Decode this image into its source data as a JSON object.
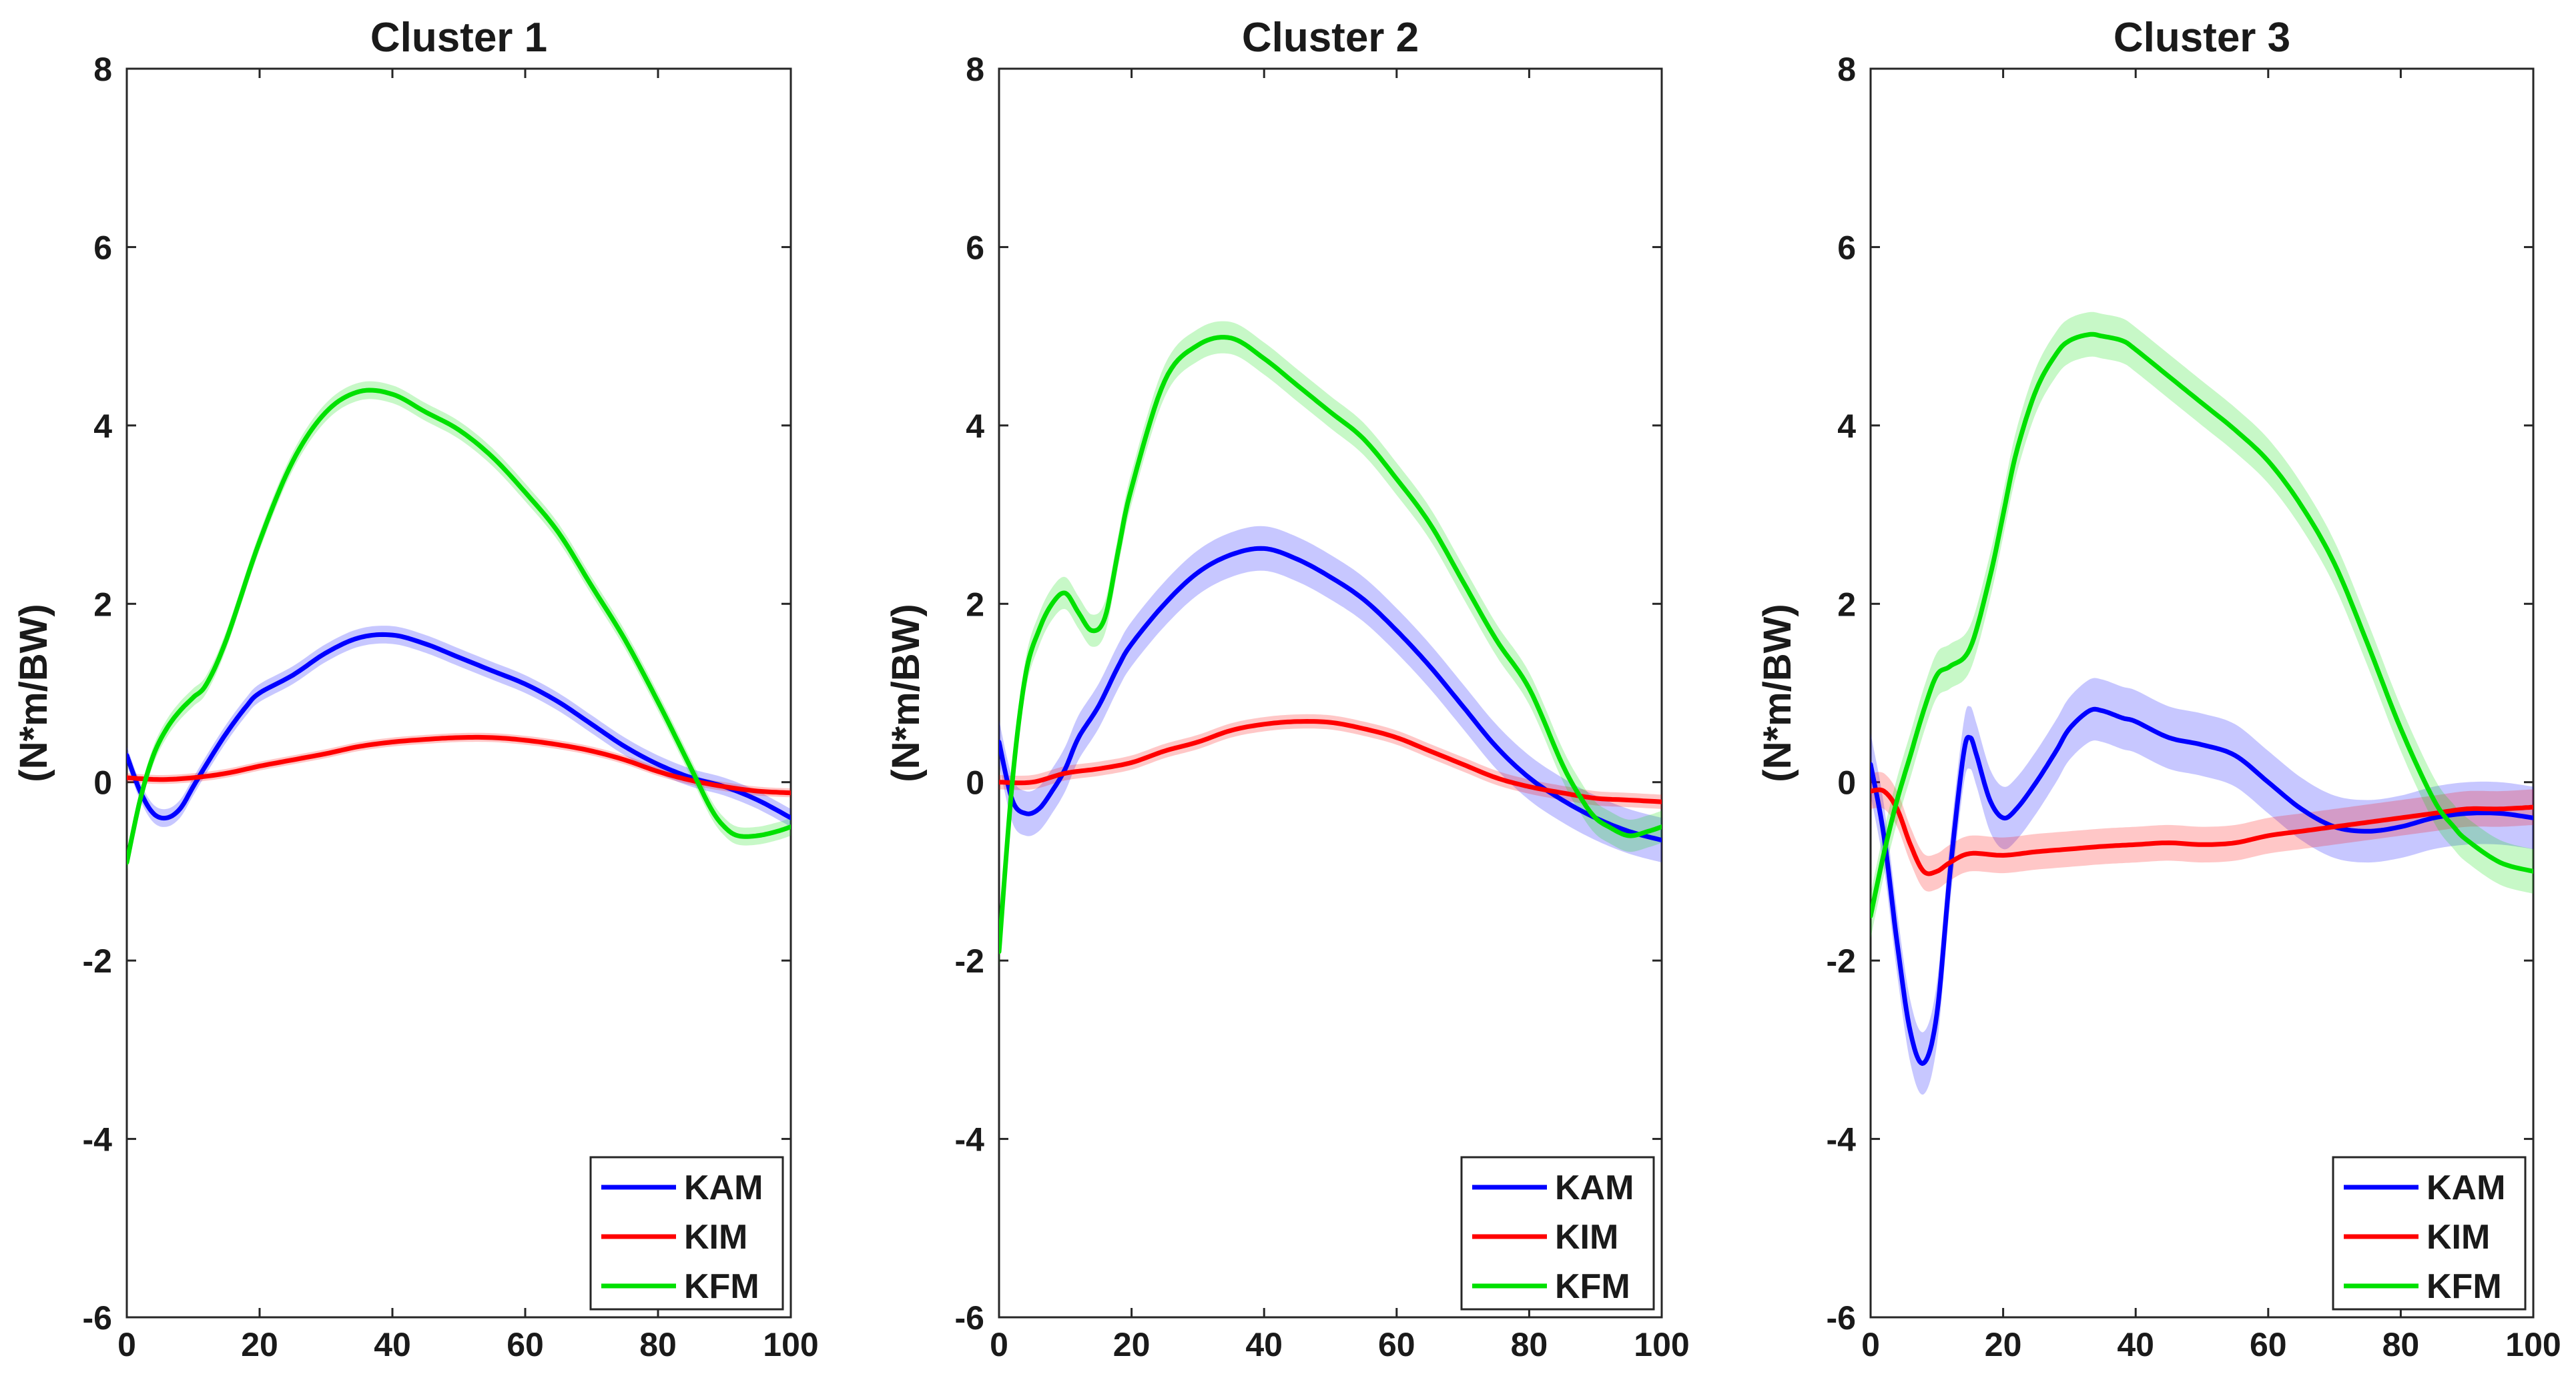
{
  "chart_data": [
    {
      "type": "line",
      "title": "Cluster 1",
      "xlabel": "",
      "ylabel": "(N*m/BW)",
      "xlim": [
        0,
        100
      ],
      "ylim": [
        -6,
        8
      ],
      "xticks": [
        0,
        20,
        40,
        60,
        80,
        100
      ],
      "yticks": [
        -6,
        -4,
        -2,
        0,
        2,
        4,
        6,
        8
      ],
      "legend_position": "bottom-right",
      "series": [
        {
          "name": "KAM",
          "color": "#0000ff",
          "band": 0.1,
          "x": [
            0,
            2,
            4,
            6,
            8,
            10,
            12,
            15,
            18,
            20,
            25,
            30,
            35,
            40,
            45,
            50,
            55,
            60,
            65,
            70,
            75,
            80,
            85,
            90,
            95,
            100
          ],
          "y": [
            0.3,
            -0.1,
            -0.35,
            -0.4,
            -0.3,
            -0.05,
            0.2,
            0.55,
            0.85,
            1.0,
            1.2,
            1.45,
            1.62,
            1.65,
            1.55,
            1.4,
            1.25,
            1.1,
            0.9,
            0.65,
            0.4,
            0.2,
            0.05,
            -0.05,
            -0.2,
            -0.4
          ]
        },
        {
          "name": "KIM",
          "color": "#ff0000",
          "band": 0.05,
          "x": [
            0,
            5,
            10,
            15,
            20,
            25,
            30,
            35,
            40,
            45,
            50,
            55,
            60,
            65,
            70,
            75,
            80,
            85,
            90,
            95,
            100
          ],
          "y": [
            0.05,
            0.03,
            0.05,
            0.1,
            0.18,
            0.25,
            0.32,
            0.4,
            0.45,
            0.48,
            0.5,
            0.5,
            0.47,
            0.42,
            0.35,
            0.25,
            0.12,
            0.02,
            -0.05,
            -0.1,
            -0.12
          ]
        },
        {
          "name": "KFM",
          "color": "#00e000",
          "band": 0.1,
          "x": [
            0,
            2,
            4,
            6,
            8,
            10,
            12,
            15,
            20,
            25,
            30,
            35,
            40,
            45,
            50,
            55,
            60,
            65,
            70,
            75,
            80,
            85,
            88,
            90,
            92,
            95,
            98,
            100
          ],
          "y": [
            -0.9,
            -0.2,
            0.3,
            0.6,
            0.8,
            0.95,
            1.1,
            1.6,
            2.7,
            3.6,
            4.15,
            4.38,
            4.35,
            4.15,
            3.95,
            3.65,
            3.25,
            2.8,
            2.2,
            1.6,
            0.9,
            0.15,
            -0.3,
            -0.5,
            -0.6,
            -0.6,
            -0.55,
            -0.5
          ]
        }
      ]
    },
    {
      "type": "line",
      "title": "Cluster 2",
      "xlabel": "",
      "ylabel": "(N*m/BW)",
      "xlim": [
        0,
        100
      ],
      "ylim": [
        -6,
        8
      ],
      "xticks": [
        0,
        20,
        40,
        60,
        80,
        100
      ],
      "yticks": [
        -6,
        -4,
        -2,
        0,
        2,
        4,
        6,
        8
      ],
      "legend_position": "bottom-right",
      "series": [
        {
          "name": "KAM",
          "color": "#0000ff",
          "band": 0.25,
          "x": [
            0,
            2,
            4,
            6,
            8,
            10,
            12,
            15,
            18,
            20,
            25,
            30,
            35,
            40,
            45,
            50,
            55,
            60,
            65,
            70,
            75,
            80,
            85,
            90,
            95,
            100
          ],
          "y": [
            0.45,
            -0.2,
            -0.35,
            -0.3,
            -0.1,
            0.15,
            0.5,
            0.85,
            1.3,
            1.55,
            2.0,
            2.35,
            2.55,
            2.62,
            2.5,
            2.3,
            2.05,
            1.7,
            1.3,
            0.85,
            0.4,
            0.05,
            -0.2,
            -0.4,
            -0.55,
            -0.65
          ]
        },
        {
          "name": "KIM",
          "color": "#ff0000",
          "band": 0.08,
          "x": [
            0,
            5,
            10,
            15,
            20,
            25,
            30,
            35,
            40,
            45,
            50,
            55,
            60,
            65,
            70,
            75,
            80,
            85,
            90,
            95,
            100
          ],
          "y": [
            0.0,
            0.0,
            0.1,
            0.15,
            0.22,
            0.35,
            0.45,
            0.58,
            0.65,
            0.68,
            0.67,
            0.6,
            0.5,
            0.35,
            0.2,
            0.05,
            -0.05,
            -0.12,
            -0.18,
            -0.2,
            -0.22
          ]
        },
        {
          "name": "KFM",
          "color": "#00e000",
          "band": 0.18,
          "x": [
            0,
            2,
            4,
            6,
            8,
            10,
            12,
            14,
            16,
            18,
            20,
            25,
            30,
            35,
            40,
            45,
            50,
            55,
            60,
            65,
            70,
            75,
            80,
            85,
            88,
            90,
            92,
            95,
            98,
            100
          ],
          "y": [
            -1.9,
            0.0,
            1.2,
            1.7,
            2.0,
            2.12,
            1.9,
            1.7,
            1.85,
            2.6,
            3.3,
            4.5,
            4.9,
            4.98,
            4.75,
            4.45,
            4.15,
            3.85,
            3.4,
            2.9,
            2.25,
            1.6,
            1.05,
            0.2,
            -0.2,
            -0.4,
            -0.5,
            -0.6,
            -0.55,
            -0.5
          ]
        }
      ]
    },
    {
      "type": "line",
      "title": "Cluster 3",
      "xlabel": "",
      "ylabel": "(N*m/BW)",
      "xlim": [
        0,
        100
      ],
      "ylim": [
        -6,
        8
      ],
      "xticks": [
        0,
        20,
        40,
        60,
        80,
        100
      ],
      "yticks": [
        -6,
        -4,
        -2,
        0,
        2,
        4,
        6,
        8
      ],
      "legend_position": "bottom-right",
      "series": [
        {
          "name": "KAM",
          "color": "#0000ff",
          "band": 0.35,
          "x": [
            0,
            2,
            4,
            6,
            8,
            10,
            12,
            14,
            15,
            16,
            18,
            20,
            22,
            25,
            28,
            30,
            33,
            35,
            38,
            40,
            45,
            50,
            55,
            60,
            65,
            70,
            75,
            80,
            85,
            90,
            95,
            100
          ],
          "y": [
            0.2,
            -0.6,
            -1.8,
            -2.8,
            -3.15,
            -2.6,
            -1.0,
            0.3,
            0.5,
            0.3,
            -0.2,
            -0.4,
            -0.3,
            0.0,
            0.35,
            0.6,
            0.8,
            0.8,
            0.72,
            0.68,
            0.5,
            0.42,
            0.3,
            0.0,
            -0.3,
            -0.5,
            -0.55,
            -0.5,
            -0.4,
            -0.35,
            -0.35,
            -0.4
          ]
        },
        {
          "name": "KIM",
          "color": "#ff0000",
          "band": 0.2,
          "x": [
            0,
            2,
            4,
            6,
            8,
            10,
            12,
            15,
            20,
            25,
            30,
            35,
            40,
            45,
            50,
            55,
            60,
            65,
            70,
            75,
            80,
            85,
            90,
            95,
            100
          ],
          "y": [
            -0.1,
            -0.1,
            -0.3,
            -0.7,
            -1.0,
            -1.0,
            -0.9,
            -0.8,
            -0.82,
            -0.78,
            -0.75,
            -0.72,
            -0.7,
            -0.68,
            -0.7,
            -0.68,
            -0.6,
            -0.55,
            -0.5,
            -0.45,
            -0.4,
            -0.35,
            -0.3,
            -0.3,
            -0.28
          ]
        },
        {
          "name": "KFM",
          "color": "#00e000",
          "band": 0.25,
          "x": [
            0,
            2,
            4,
            6,
            8,
            10,
            12,
            15,
            18,
            20,
            22,
            25,
            28,
            30,
            33,
            35,
            38,
            40,
            45,
            50,
            55,
            60,
            65,
            70,
            75,
            80,
            85,
            88,
            90,
            95,
            100
          ],
          "y": [
            -1.5,
            -0.8,
            -0.2,
            0.3,
            0.8,
            1.2,
            1.3,
            1.5,
            2.3,
            3.0,
            3.7,
            4.4,
            4.8,
            4.95,
            5.02,
            5.0,
            4.95,
            4.85,
            4.55,
            4.25,
            3.95,
            3.6,
            3.1,
            2.45,
            1.55,
            0.6,
            -0.2,
            -0.5,
            -0.65,
            -0.9,
            -1.0
          ]
        }
      ]
    }
  ]
}
